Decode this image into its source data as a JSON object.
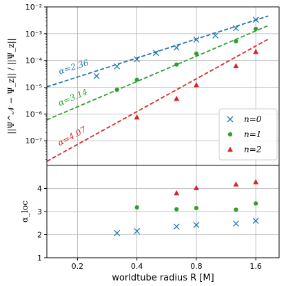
{
  "chart_data": [
    {
      "type": "scatter",
      "panel": "top",
      "xscale": "log",
      "yscale": "log",
      "xlim": [
        0.14,
        2.1
      ],
      "ylim": [
        1.2e-08,
        0.01
      ],
      "grid": true,
      "ylabel": "||Ψ^𝒩 − Ψ_z|| / ||Ψ_z||",
      "yticks": [
        1e-07,
        1e-06,
        1e-05,
        0.0001,
        0.001,
        0.01
      ],
      "ytick_labels": [
        "10⁻⁷",
        "10⁻⁶",
        "10⁻⁵",
        "10⁻⁴",
        "10⁻³",
        "10⁻²"
      ],
      "legend_position": "lower right",
      "series": [
        {
          "name": "n=0",
          "marker": "x",
          "color": "#1f77b4",
          "x": [
            0.25,
            0.317,
            0.4,
            0.5,
            0.635,
            0.8,
            1.0,
            1.27,
            1.6
          ],
          "y": [
            2.6e-05,
            6e-05,
            0.00011,
            0.00019,
            0.0003,
            0.0006,
            0.00085,
            0.0016,
            0.0033
          ]
        },
        {
          "name": "n=1",
          "marker": "o",
          "color": "#2ca02c",
          "x": [
            0.317,
            0.4,
            0.635,
            0.8,
            1.27,
            1.6
          ],
          "y": [
            8e-06,
            1.9e-05,
            7e-05,
            0.00018,
            0.00052,
            0.0015
          ]
        },
        {
          "name": "n=2",
          "marker": "^",
          "color": "#d62728",
          "x": [
            0.4,
            0.635,
            0.8,
            1.27,
            1.6
          ],
          "y": [
            7.5e-07,
            3.7e-06,
            1.2e-05,
            6.2e-05,
            0.00021
          ]
        }
      ],
      "fits": [
        {
          "label": "α=2.36",
          "color": "#1f77b4",
          "slope": 2.36,
          "x_range": [
            0.14,
            1.85
          ],
          "y_at_1": 0.00107
        },
        {
          "label": "α=3.14",
          "color": "#2ca02c",
          "slope": 3.14,
          "x_range": [
            0.14,
            1.85
          ],
          "y_at_1": 0.00029
        },
        {
          "label": "α=4.07",
          "color": "#d62728",
          "slope": 4.07,
          "x_range": [
            0.14,
            1.85
          ],
          "y_at_1": 5.1e-05
        }
      ]
    },
    {
      "type": "scatter",
      "panel": "bottom",
      "xscale": "log",
      "xlim": [
        0.14,
        2.1
      ],
      "ylim": [
        1,
        5
      ],
      "grid": true,
      "xlabel": "worldtube radius R [M]",
      "ylabel": "α_loc",
      "xticks": [
        0.2,
        0.4,
        0.8,
        1.6
      ],
      "xtick_labels": [
        "0.2",
        "0.4",
        "0.8",
        "1.6"
      ],
      "yticks": [
        1,
        2,
        3,
        4
      ],
      "ytick_labels": [
        "1",
        "2",
        "3",
        "4"
      ],
      "series": [
        {
          "name": "n=0",
          "marker": "x",
          "color": "#1f77b4",
          "x": [
            0.317,
            0.4,
            0.635,
            0.8,
            1.27,
            1.6
          ],
          "y": [
            2.07,
            2.15,
            2.35,
            2.42,
            2.48,
            2.6
          ]
        },
        {
          "name": "n=1",
          "marker": "o",
          "color": "#2ca02c",
          "x": [
            0.4,
            0.635,
            0.8,
            1.27,
            1.6
          ],
          "y": [
            3.18,
            3.1,
            3.15,
            3.08,
            3.35
          ]
        },
        {
          "name": "n=2",
          "marker": "^",
          "color": "#d62728",
          "x": [
            0.635,
            0.8,
            1.27,
            1.6
          ],
          "y": [
            3.8,
            4.02,
            4.18,
            4.28
          ]
        }
      ]
    }
  ]
}
